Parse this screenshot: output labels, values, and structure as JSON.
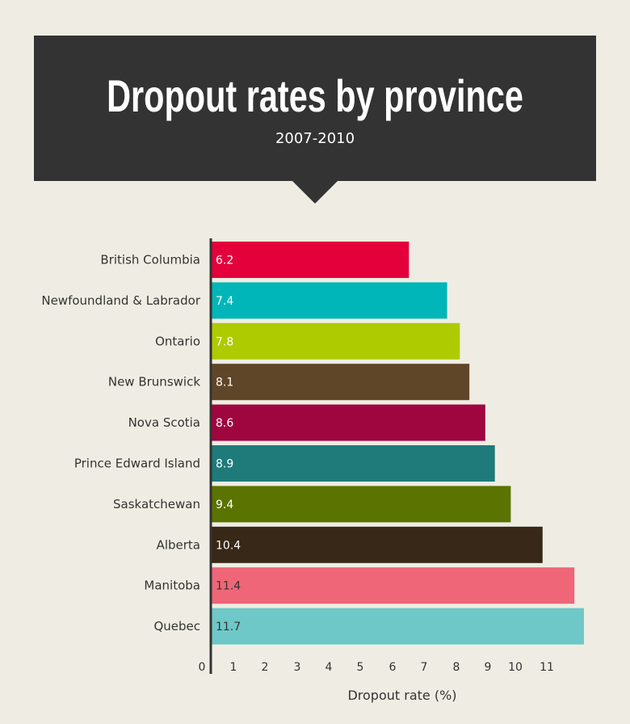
{
  "chart_data": {
    "type": "bar",
    "orientation": "horizontal",
    "title": "Dropout rates by province",
    "subtitle": "2007-2010",
    "xlabel": "Dropout rate (%)",
    "xlim": [
      0,
      11.7
    ],
    "xticks": [
      "0",
      "1",
      "2",
      "3",
      "4",
      "5",
      "6",
      "7",
      "8",
      "9",
      "10",
      "11"
    ],
    "grid": false,
    "legend": "none",
    "categories": [
      "British Columbia",
      "Newfoundland & Labrador",
      "Ontario",
      "New Brunswick",
      "Nova Scotia",
      "Prince Edward Island",
      "Saskatchewan",
      "Alberta",
      "Manitoba",
      "Quebec"
    ],
    "values": [
      6.2,
      7.4,
      7.8,
      8.1,
      8.6,
      8.9,
      9.4,
      10.4,
      11.4,
      11.7
    ],
    "value_labels": [
      "6.2",
      "7.4",
      "7.8",
      "8.1",
      "8.6",
      "8.9",
      "9.4",
      "10.4",
      "11.4",
      "11.7"
    ],
    "colors": [
      "#e4003b",
      "#00b6b8",
      "#aecb00",
      "#604628",
      "#9f0640",
      "#1e7b7a",
      "#5b7300",
      "#372817",
      "#ee6677",
      "#6fc8c8"
    ],
    "label_colors": [
      "#ffffff",
      "#ffffff",
      "#ffffff",
      "#ffffff",
      "#ffffff",
      "#ffffff",
      "#ffffff",
      "#ffffff",
      "#333333",
      "#333333"
    ]
  }
}
